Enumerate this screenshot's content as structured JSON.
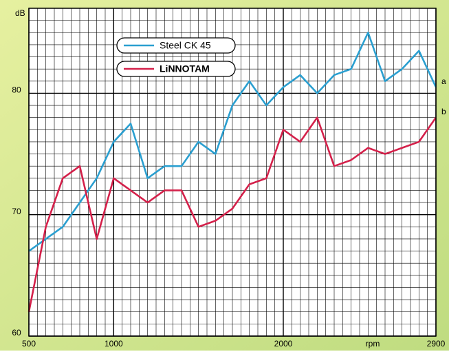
{
  "chart_data": {
    "type": "line",
    "x_label": "rpm",
    "y_label": "dB",
    "x": [
      500,
      600,
      700,
      800,
      900,
      1000,
      1100,
      1200,
      1300,
      1400,
      1500,
      1600,
      1700,
      1800,
      1900,
      2000,
      2100,
      2200,
      2300,
      2400,
      2500,
      2600,
      2700,
      2800,
      2900
    ],
    "series": [
      {
        "name": "Steel CK 45",
        "color": "#2a9fd0",
        "annotation": "a",
        "values": [
          67,
          68,
          69,
          71,
          73,
          76,
          77.5,
          73,
          74,
          74,
          76,
          75,
          79,
          81,
          79,
          80.5,
          81.5,
          80,
          81.5,
          82,
          85,
          81,
          82,
          83.5,
          80.5
        ]
      },
      {
        "name": "LiNNOTAM",
        "color": "#d4204a",
        "annotation": "b",
        "values": [
          62,
          69,
          73,
          74,
          68,
          73,
          72,
          71,
          72,
          72,
          69,
          69.5,
          70.5,
          72.5,
          73,
          77,
          76,
          78,
          74,
          74.5,
          75.5,
          75,
          75.5,
          76,
          78
        ]
      }
    ],
    "xlim": [
      500,
      2900
    ],
    "xticks": [
      500,
      1000,
      2000,
      2900
    ],
    "ylim": [
      60,
      87
    ],
    "yticks": [
      60,
      70,
      80
    ],
    "grid": true,
    "grid_step": {
      "x": 50,
      "y": 1
    }
  }
}
